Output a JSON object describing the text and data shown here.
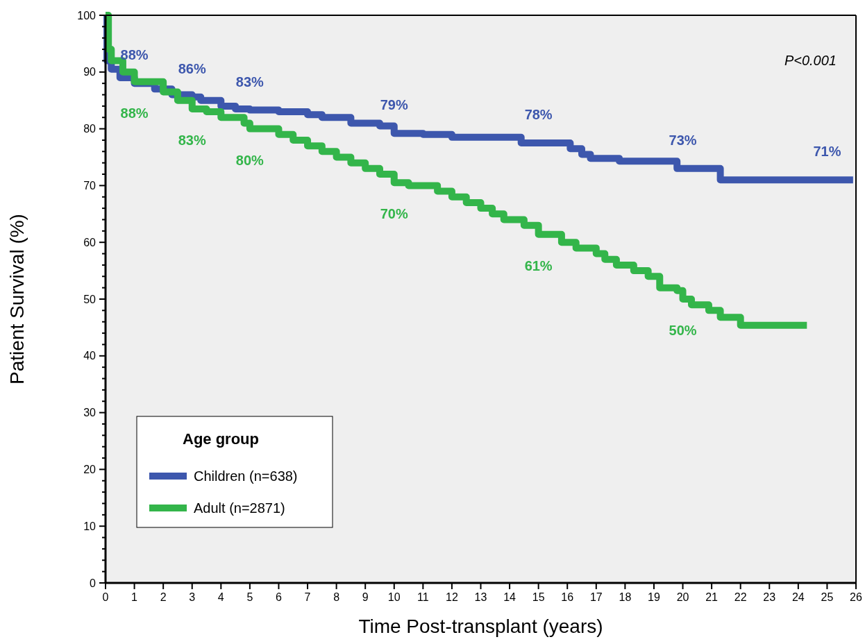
{
  "chart_data": {
    "type": "step",
    "xlabel": "Time Post-transplant (years)",
    "ylabel": "Patient Survival (%)",
    "legend_title": "Age group",
    "annotations": [
      "P<0.001"
    ],
    "xlim": [
      0,
      26
    ],
    "xticks": [
      0,
      1,
      2,
      3,
      4,
      5,
      6,
      7,
      8,
      9,
      10,
      11,
      12,
      13,
      14,
      15,
      16,
      17,
      18,
      19,
      20,
      21,
      22,
      23,
      24,
      25,
      26
    ],
    "ylim": [
      0,
      100
    ],
    "yticks": [
      0,
      {
        "value": 2,
        "label": null
      },
      {
        "value": 4,
        "label": null
      },
      {
        "value": 6,
        "label": null
      },
      {
        "value": 8,
        "label": null
      },
      10,
      {
        "value": 12,
        "label": null
      },
      {
        "value": 14,
        "label": null
      },
      {
        "value": 16,
        "label": null
      },
      {
        "value": 18,
        "label": null
      },
      20,
      {
        "value": 22,
        "label": null
      },
      {
        "value": 24,
        "label": null
      },
      {
        "value": 26,
        "label": null
      },
      {
        "value": 28,
        "label": null
      },
      30,
      {
        "value": 32,
        "label": null
      },
      {
        "value": 34,
        "label": null
      },
      {
        "value": 36,
        "label": null
      },
      {
        "value": 38,
        "label": null
      },
      40,
      {
        "value": 42,
        "label": null
      },
      {
        "value": 44,
        "label": null
      },
      {
        "value": 46,
        "label": null
      },
      {
        "value": 48,
        "label": null
      },
      50,
      {
        "value": 52,
        "label": null
      },
      {
        "value": 54,
        "label": null
      },
      {
        "value": 56,
        "label": null
      },
      {
        "value": 58,
        "label": null
      },
      60,
      {
        "value": 62,
        "label": null
      },
      {
        "value": 64,
        "label": null
      },
      {
        "value": 66,
        "label": null
      },
      {
        "value": 68,
        "label": null
      },
      70,
      {
        "value": 72,
        "label": null
      },
      {
        "value": 74,
        "label": null
      },
      {
        "value": 76,
        "label": null
      },
      {
        "value": 78,
        "label": null
      },
      80,
      {
        "value": 82,
        "label": null
      },
      {
        "value": 84,
        "label": null
      },
      {
        "value": 86,
        "label": null
      },
      {
        "value": 88,
        "label": null
      },
      90,
      {
        "value": 92,
        "label": null
      },
      {
        "value": 94,
        "label": null
      },
      {
        "value": 96,
        "label": null
      },
      {
        "value": 98,
        "label": null
      },
      100
    ],
    "grid": false,
    "legend": "bottom left",
    "marker": "none",
    "line_style": "solid",
    "series": [
      {
        "name": "Children (n=638)",
        "color": "#3d57ad",
        "x": [
          0,
          0.05,
          0.2,
          0.5,
          1,
          1.7,
          2.3,
          3,
          3.3,
          4,
          4.5,
          5,
          6,
          7,
          7.5,
          8.5,
          9.5,
          10,
          11,
          12,
          14,
          14.4,
          15,
          16.1,
          16.5,
          16.8,
          17.8,
          19.8,
          20,
          21.3,
          25,
          25.9
        ],
        "values": [
          100,
          92,
          90.5,
          89,
          88,
          87,
          86,
          85.6,
          85,
          84,
          83.5,
          83.3,
          83,
          82.5,
          82,
          81,
          80.5,
          79.2,
          79,
          78.5,
          78.5,
          77.5,
          77.5,
          76.5,
          75.5,
          74.8,
          74.3,
          73,
          73,
          71,
          71,
          71
        ],
        "value_labels": [
          null,
          null,
          null,
          null,
          "88%",
          null,
          null,
          "86%",
          null,
          null,
          null,
          "83%",
          null,
          null,
          null,
          null,
          null,
          "79%",
          null,
          null,
          null,
          null,
          "78%",
          null,
          null,
          null,
          null,
          null,
          "73%",
          null,
          "71%",
          null
        ]
      },
      {
        "name": "Adult (n=2871)",
        "color": "#33b54a",
        "x": [
          0,
          0.1,
          0.2,
          0.6,
          1,
          2,
          2.5,
          3,
          3.5,
          4,
          4.8,
          5,
          6,
          6.5,
          7,
          7.5,
          8,
          8.5,
          9,
          9.5,
          10,
          10.5,
          11.5,
          12,
          12.5,
          13,
          13.4,
          13.8,
          14.5,
          15,
          15.8,
          16.3,
          17,
          17.3,
          17.7,
          18.3,
          18.8,
          19.2,
          19.8,
          20,
          20.3,
          20.9,
          21.3,
          22,
          24.3
        ],
        "values": [
          100,
          94,
          92,
          90,
          88.3,
          86.5,
          85,
          83.5,
          83,
          82,
          81,
          80,
          79,
          78,
          77,
          76,
          75,
          74,
          73,
          72,
          70.5,
          70,
          69,
          68,
          67,
          66,
          65,
          64,
          63,
          61.4,
          60,
          59,
          58,
          57,
          56,
          55,
          54,
          52,
          51.5,
          50,
          49,
          48,
          46.8,
          45.4,
          45.4
        ],
        "value_labels": [
          null,
          null,
          null,
          null,
          "88%",
          null,
          null,
          "83%",
          null,
          null,
          null,
          "80%",
          null,
          null,
          null,
          null,
          null,
          null,
          null,
          null,
          "70%",
          null,
          null,
          null,
          null,
          null,
          null,
          null,
          null,
          "61%",
          null,
          null,
          null,
          null,
          null,
          null,
          null,
          null,
          null,
          "50%",
          null,
          null,
          null,
          null,
          null
        ]
      }
    ]
  }
}
